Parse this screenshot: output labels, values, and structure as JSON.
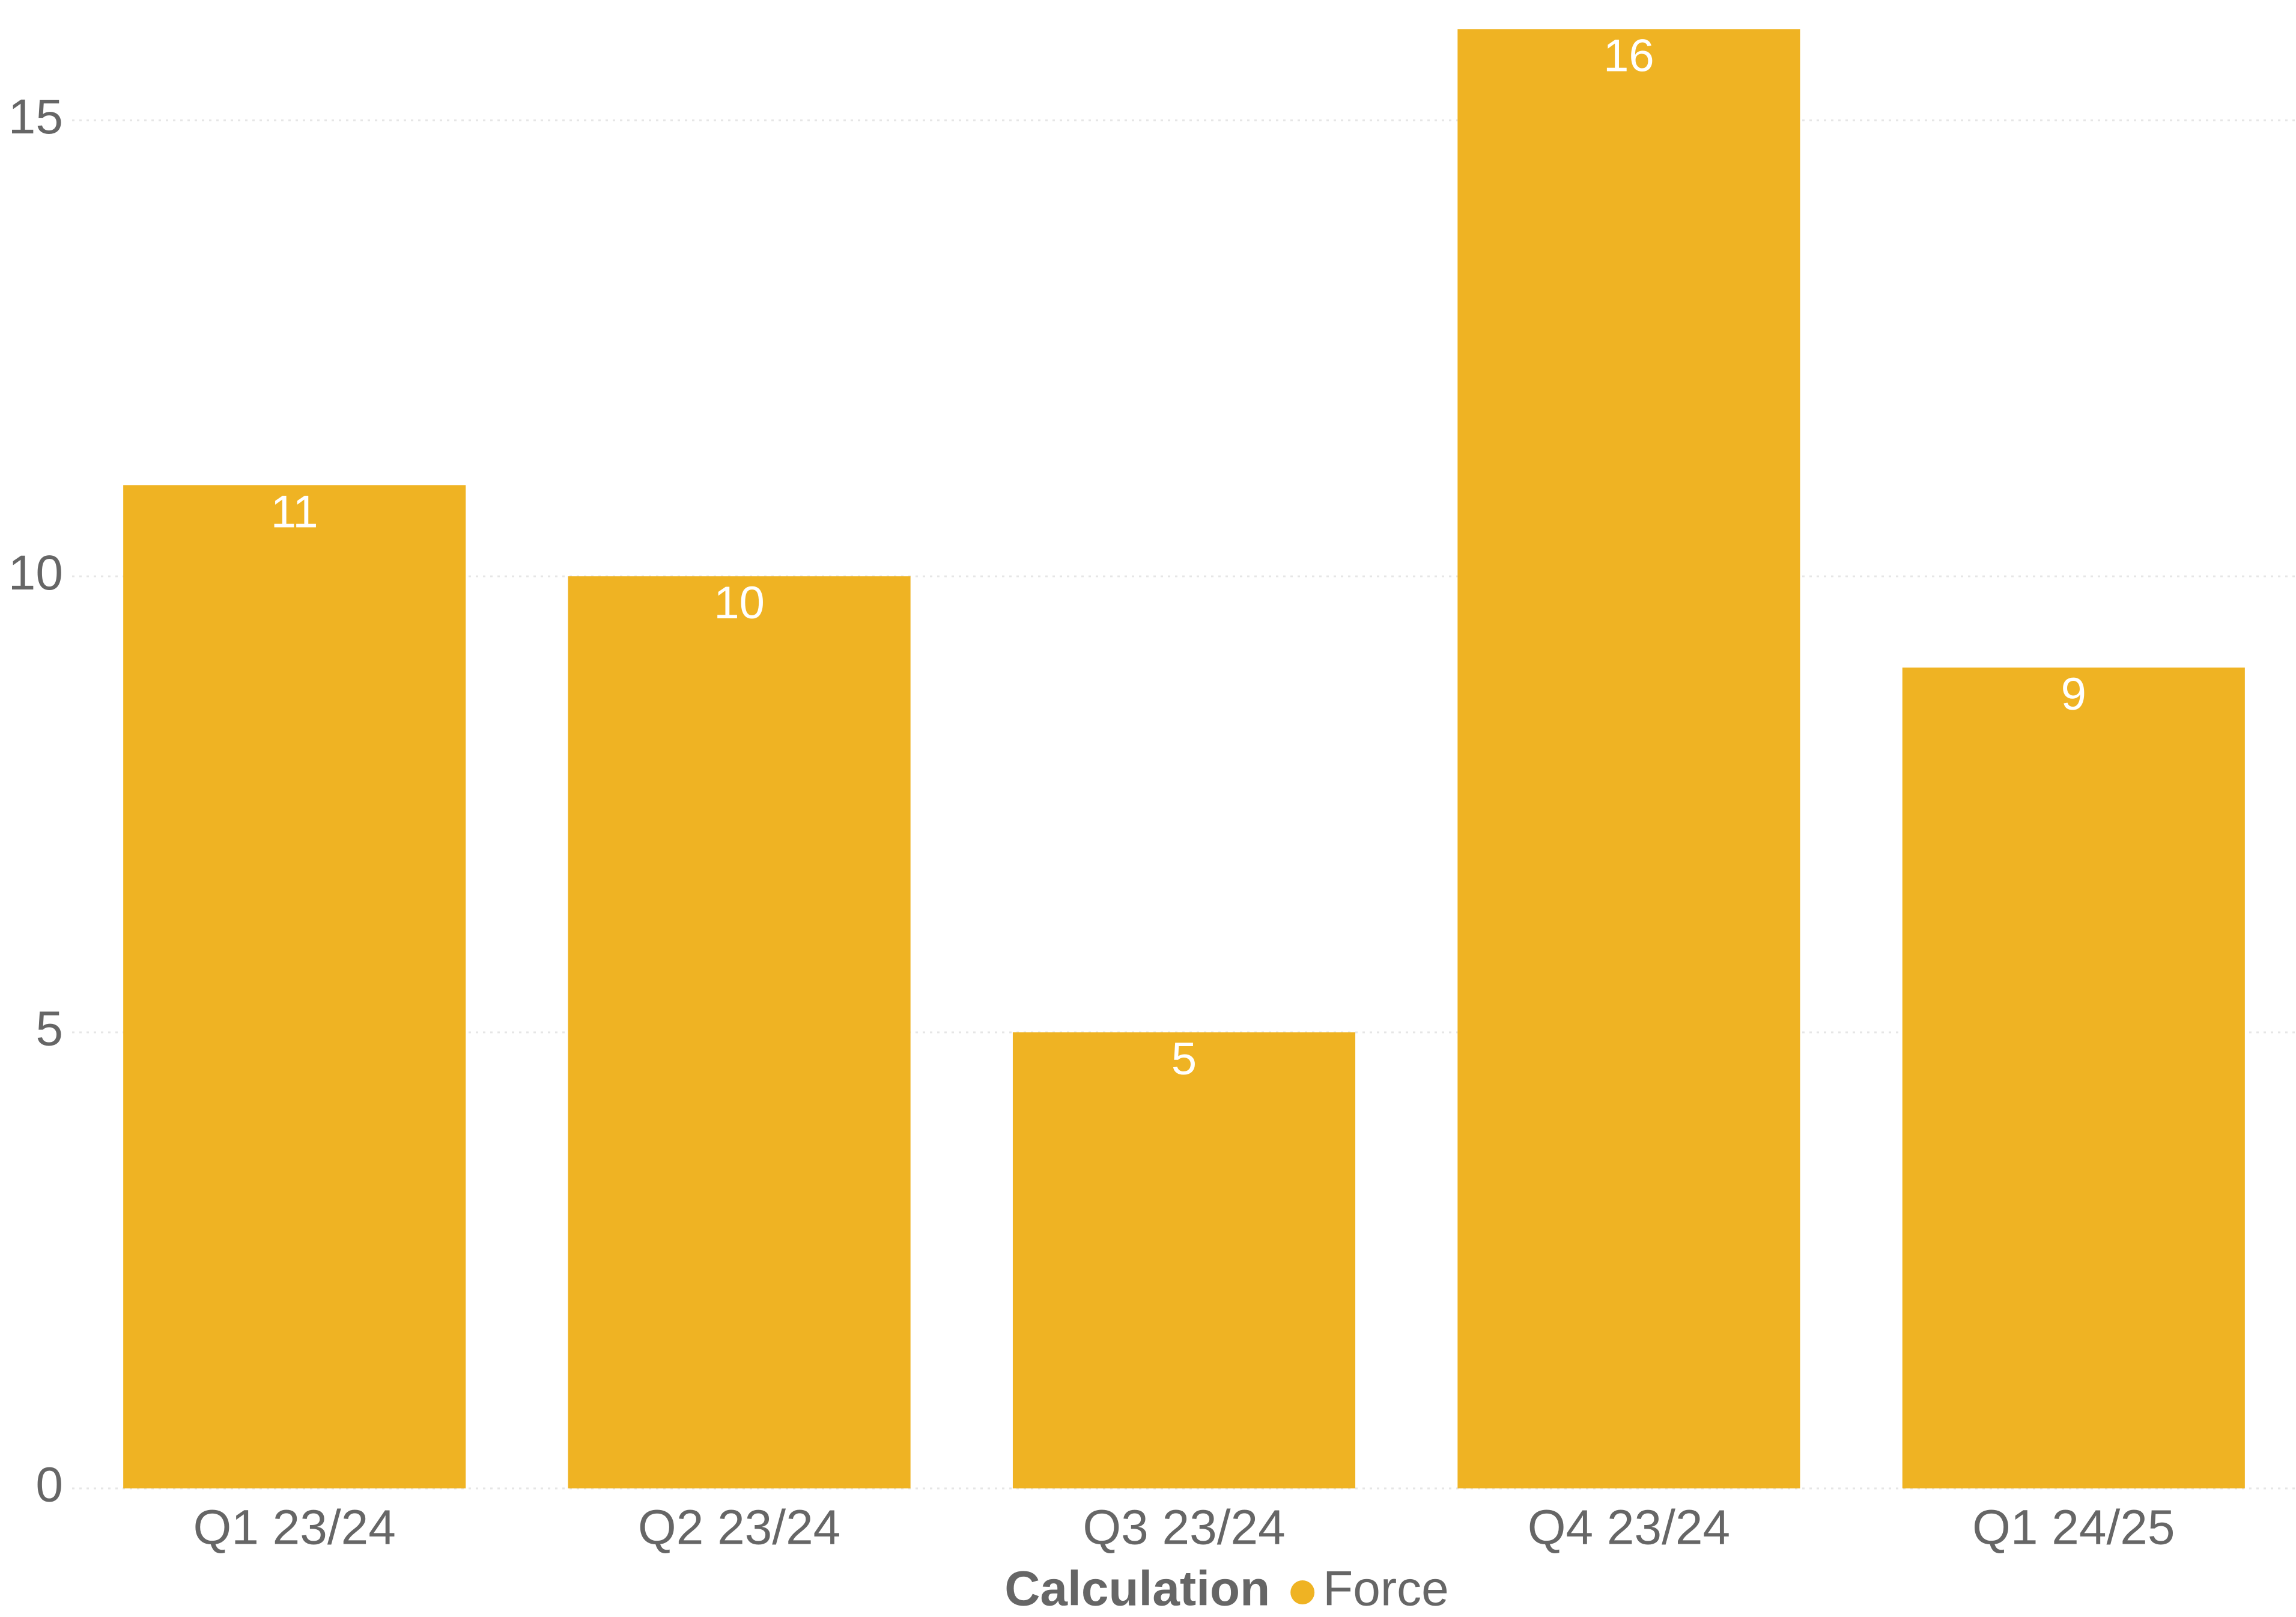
{
  "chart_data": {
    "type": "bar",
    "categories": [
      "Q1 23/24",
      "Q2 23/24",
      "Q3 23/24",
      "Q4 23/24",
      "Q1 24/25"
    ],
    "series": [
      {
        "name": "Force",
        "values": [
          11,
          10,
          5,
          16,
          9
        ],
        "color": "#EFB323"
      }
    ],
    "data_labels": [
      "11",
      "10",
      "5",
      "16",
      "9"
    ],
    "yticks": [
      0,
      5,
      10,
      15
    ],
    "ytick_labels": [
      "0",
      "5",
      "10",
      "15"
    ],
    "ylim": [
      0,
      16.2
    ],
    "grid": true,
    "legend": {
      "title": "Calculation",
      "placement": "bottom-center",
      "entries": [
        {
          "label": "Force",
          "color": "#EFB323"
        }
      ]
    },
    "title": "",
    "xlabel": "",
    "ylabel": ""
  }
}
